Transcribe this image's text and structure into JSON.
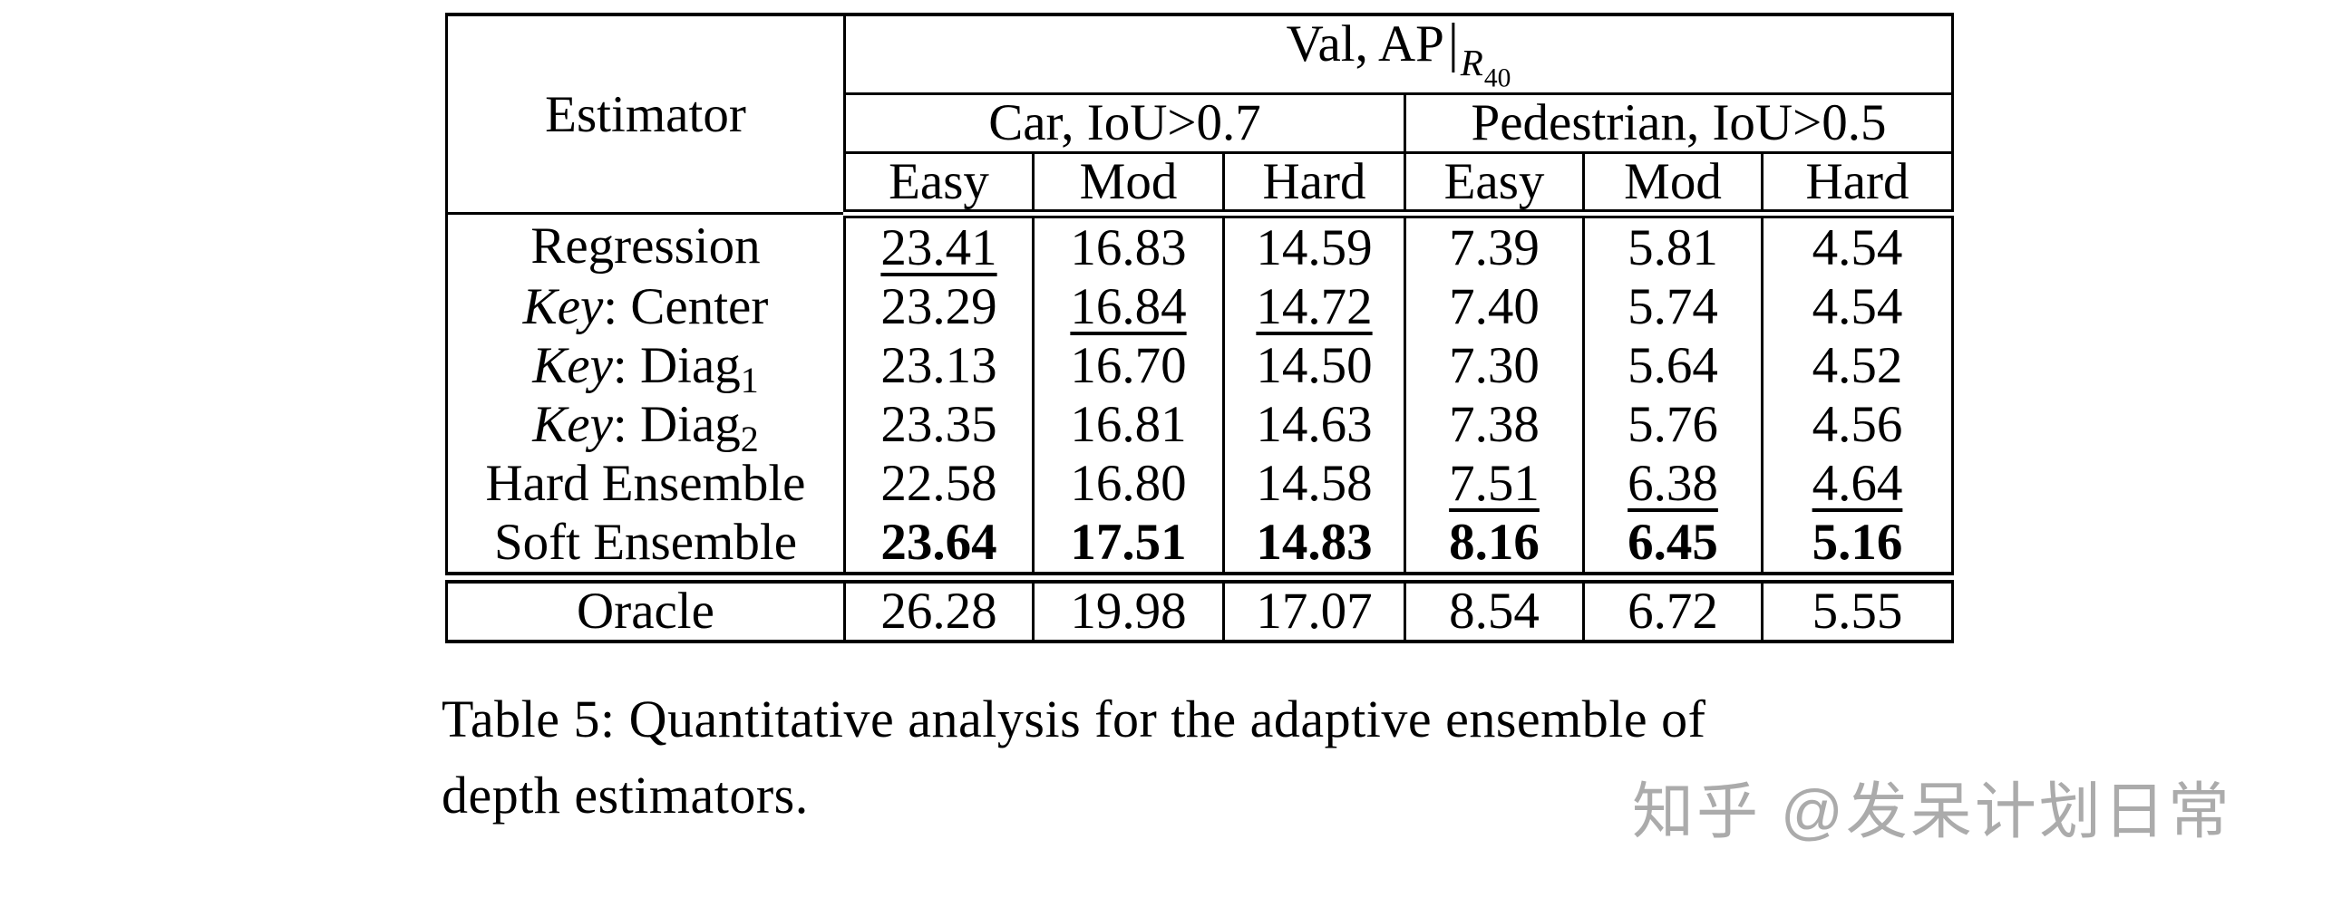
{
  "table": {
    "title": {
      "main": "Val, AP",
      "bar": "|",
      "sub": "R",
      "subsub": "40"
    },
    "estimator_header": "Estimator",
    "groups": [
      {
        "label": "Car, IoU>0.7"
      },
      {
        "label": "Pedestrian, IoU>0.5"
      }
    ],
    "col_headers": [
      "Easy",
      "Mod",
      "Hard",
      "Easy",
      "Mod",
      "Hard"
    ],
    "rows": [
      {
        "label": [
          {
            "text": "Regression"
          }
        ],
        "values": [
          "23.41",
          "16.83",
          "14.59",
          "7.39",
          "5.81",
          "4.54"
        ],
        "underline_cols": [
          0
        ],
        "bold_values": false
      },
      {
        "label": [
          {
            "text": "Key",
            "italic": true
          },
          {
            "text": ": Center"
          }
        ],
        "values": [
          "23.29",
          "16.84",
          "14.72",
          "7.40",
          "5.74",
          "4.54"
        ],
        "underline_cols": [
          1,
          2
        ],
        "bold_values": false
      },
      {
        "label": [
          {
            "text": "Key",
            "italic": true
          },
          {
            "text": ": Diag"
          },
          {
            "text": "1",
            "sub": true
          }
        ],
        "values": [
          "23.13",
          "16.70",
          "14.50",
          "7.30",
          "5.64",
          "4.52"
        ],
        "underline_cols": [],
        "bold_values": false
      },
      {
        "label": [
          {
            "text": "Key",
            "italic": true
          },
          {
            "text": ": Diag"
          },
          {
            "text": "2",
            "sub": true
          }
        ],
        "values": [
          "23.35",
          "16.81",
          "14.63",
          "7.38",
          "5.76",
          "4.56"
        ],
        "underline_cols": [],
        "bold_values": false
      },
      {
        "label": [
          {
            "text": "Hard Ensemble"
          }
        ],
        "values": [
          "22.58",
          "16.80",
          "14.58",
          "7.51",
          "6.38",
          "4.64"
        ],
        "underline_cols": [
          3,
          4,
          5
        ],
        "bold_values": false
      },
      {
        "label": [
          {
            "text": "Soft Ensemble"
          }
        ],
        "values": [
          "23.64",
          "17.51",
          "14.83",
          "8.16",
          "6.45",
          "5.16"
        ],
        "underline_cols": [],
        "bold_values": true,
        "rule_below": "double"
      },
      {
        "label": [
          {
            "text": "Oracle"
          }
        ],
        "values": [
          "26.28",
          "19.98",
          "17.07",
          "8.54",
          "6.72",
          "5.55"
        ],
        "underline_cols": [],
        "bold_values": false,
        "section": "footer"
      }
    ]
  },
  "caption": {
    "lines": [
      "Table 5: Quantitative analysis for the adaptive ensemble of",
      "depth estimators."
    ]
  },
  "watermark": {
    "text": "知乎 @发呆计划日常",
    "color": "#ababab"
  }
}
